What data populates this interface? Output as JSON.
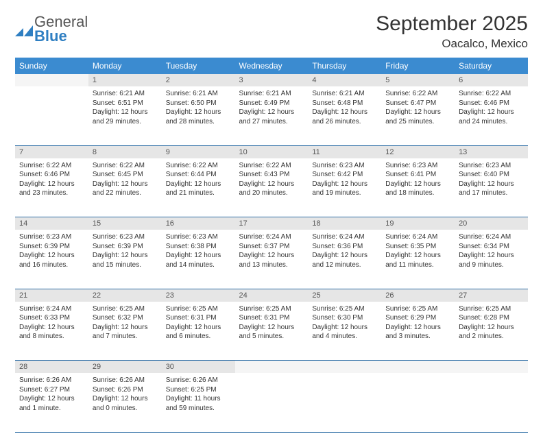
{
  "logo": {
    "line1": "General",
    "line2": "Blue"
  },
  "header": {
    "month_title": "September 2025",
    "location": "Oacalco, Mexico"
  },
  "colors": {
    "header_bg": "#3b8bd0",
    "header_text": "#ffffff",
    "daynum_bg": "#e6e6e6",
    "rule": "#2f6fa6",
    "logo_blue": "#2f7fc2"
  },
  "daysOfWeek": [
    "Sunday",
    "Monday",
    "Tuesday",
    "Wednesday",
    "Thursday",
    "Friday",
    "Saturday"
  ],
  "weeks": [
    [
      null,
      {
        "n": "1",
        "sunrise": "Sunrise: 6:21 AM",
        "sunset": "Sunset: 6:51 PM",
        "daylight": "Daylight: 12 hours and 29 minutes."
      },
      {
        "n": "2",
        "sunrise": "Sunrise: 6:21 AM",
        "sunset": "Sunset: 6:50 PM",
        "daylight": "Daylight: 12 hours and 28 minutes."
      },
      {
        "n": "3",
        "sunrise": "Sunrise: 6:21 AM",
        "sunset": "Sunset: 6:49 PM",
        "daylight": "Daylight: 12 hours and 27 minutes."
      },
      {
        "n": "4",
        "sunrise": "Sunrise: 6:21 AM",
        "sunset": "Sunset: 6:48 PM",
        "daylight": "Daylight: 12 hours and 26 minutes."
      },
      {
        "n": "5",
        "sunrise": "Sunrise: 6:22 AM",
        "sunset": "Sunset: 6:47 PM",
        "daylight": "Daylight: 12 hours and 25 minutes."
      },
      {
        "n": "6",
        "sunrise": "Sunrise: 6:22 AM",
        "sunset": "Sunset: 6:46 PM",
        "daylight": "Daylight: 12 hours and 24 minutes."
      }
    ],
    [
      {
        "n": "7",
        "sunrise": "Sunrise: 6:22 AM",
        "sunset": "Sunset: 6:46 PM",
        "daylight": "Daylight: 12 hours and 23 minutes."
      },
      {
        "n": "8",
        "sunrise": "Sunrise: 6:22 AM",
        "sunset": "Sunset: 6:45 PM",
        "daylight": "Daylight: 12 hours and 22 minutes."
      },
      {
        "n": "9",
        "sunrise": "Sunrise: 6:22 AM",
        "sunset": "Sunset: 6:44 PM",
        "daylight": "Daylight: 12 hours and 21 minutes."
      },
      {
        "n": "10",
        "sunrise": "Sunrise: 6:22 AM",
        "sunset": "Sunset: 6:43 PM",
        "daylight": "Daylight: 12 hours and 20 minutes."
      },
      {
        "n": "11",
        "sunrise": "Sunrise: 6:23 AM",
        "sunset": "Sunset: 6:42 PM",
        "daylight": "Daylight: 12 hours and 19 minutes."
      },
      {
        "n": "12",
        "sunrise": "Sunrise: 6:23 AM",
        "sunset": "Sunset: 6:41 PM",
        "daylight": "Daylight: 12 hours and 18 minutes."
      },
      {
        "n": "13",
        "sunrise": "Sunrise: 6:23 AM",
        "sunset": "Sunset: 6:40 PM",
        "daylight": "Daylight: 12 hours and 17 minutes."
      }
    ],
    [
      {
        "n": "14",
        "sunrise": "Sunrise: 6:23 AM",
        "sunset": "Sunset: 6:39 PM",
        "daylight": "Daylight: 12 hours and 16 minutes."
      },
      {
        "n": "15",
        "sunrise": "Sunrise: 6:23 AM",
        "sunset": "Sunset: 6:39 PM",
        "daylight": "Daylight: 12 hours and 15 minutes."
      },
      {
        "n": "16",
        "sunrise": "Sunrise: 6:23 AM",
        "sunset": "Sunset: 6:38 PM",
        "daylight": "Daylight: 12 hours and 14 minutes."
      },
      {
        "n": "17",
        "sunrise": "Sunrise: 6:24 AM",
        "sunset": "Sunset: 6:37 PM",
        "daylight": "Daylight: 12 hours and 13 minutes."
      },
      {
        "n": "18",
        "sunrise": "Sunrise: 6:24 AM",
        "sunset": "Sunset: 6:36 PM",
        "daylight": "Daylight: 12 hours and 12 minutes."
      },
      {
        "n": "19",
        "sunrise": "Sunrise: 6:24 AM",
        "sunset": "Sunset: 6:35 PM",
        "daylight": "Daylight: 12 hours and 11 minutes."
      },
      {
        "n": "20",
        "sunrise": "Sunrise: 6:24 AM",
        "sunset": "Sunset: 6:34 PM",
        "daylight": "Daylight: 12 hours and 9 minutes."
      }
    ],
    [
      {
        "n": "21",
        "sunrise": "Sunrise: 6:24 AM",
        "sunset": "Sunset: 6:33 PM",
        "daylight": "Daylight: 12 hours and 8 minutes."
      },
      {
        "n": "22",
        "sunrise": "Sunrise: 6:25 AM",
        "sunset": "Sunset: 6:32 PM",
        "daylight": "Daylight: 12 hours and 7 minutes."
      },
      {
        "n": "23",
        "sunrise": "Sunrise: 6:25 AM",
        "sunset": "Sunset: 6:31 PM",
        "daylight": "Daylight: 12 hours and 6 minutes."
      },
      {
        "n": "24",
        "sunrise": "Sunrise: 6:25 AM",
        "sunset": "Sunset: 6:31 PM",
        "daylight": "Daylight: 12 hours and 5 minutes."
      },
      {
        "n": "25",
        "sunrise": "Sunrise: 6:25 AM",
        "sunset": "Sunset: 6:30 PM",
        "daylight": "Daylight: 12 hours and 4 minutes."
      },
      {
        "n": "26",
        "sunrise": "Sunrise: 6:25 AM",
        "sunset": "Sunset: 6:29 PM",
        "daylight": "Daylight: 12 hours and 3 minutes."
      },
      {
        "n": "27",
        "sunrise": "Sunrise: 6:25 AM",
        "sunset": "Sunset: 6:28 PM",
        "daylight": "Daylight: 12 hours and 2 minutes."
      }
    ],
    [
      {
        "n": "28",
        "sunrise": "Sunrise: 6:26 AM",
        "sunset": "Sunset: 6:27 PM",
        "daylight": "Daylight: 12 hours and 1 minute."
      },
      {
        "n": "29",
        "sunrise": "Sunrise: 6:26 AM",
        "sunset": "Sunset: 6:26 PM",
        "daylight": "Daylight: 12 hours and 0 minutes."
      },
      {
        "n": "30",
        "sunrise": "Sunrise: 6:26 AM",
        "sunset": "Sunset: 6:25 PM",
        "daylight": "Daylight: 11 hours and 59 minutes."
      },
      null,
      null,
      null,
      null
    ]
  ]
}
